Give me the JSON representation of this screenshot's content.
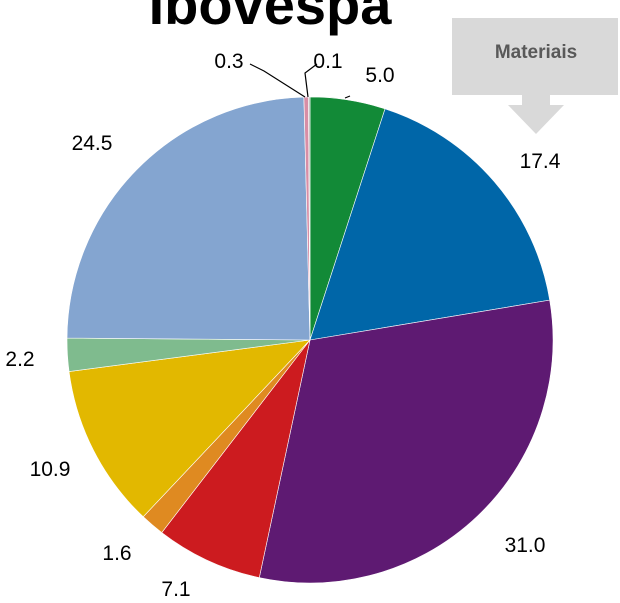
{
  "chart_data": {
    "type": "pie",
    "title": "Ibovespa",
    "start_angle_deg": 0,
    "direction": "clockwise",
    "slices": [
      {
        "value": 5.0,
        "label": "5.0",
        "color": "#128a37"
      },
      {
        "value": 17.4,
        "label": "17.4",
        "color": "#0066a8"
      },
      {
        "value": 31.0,
        "label": "31.0",
        "color": "#5e1a72"
      },
      {
        "value": 7.1,
        "label": "7.1",
        "color": "#cc1b1f"
      },
      {
        "value": 1.6,
        "label": "1.6",
        "color": "#df8a21"
      },
      {
        "value": 10.9,
        "label": "10.9",
        "color": "#e2b800"
      },
      {
        "value": 2.2,
        "label": "2.2",
        "color": "#7fbb8e"
      },
      {
        "value": 24.5,
        "label": "24.5",
        "color": "#84a5d0"
      },
      {
        "value": 0.3,
        "label": "0.3",
        "color": "#d88ea6"
      },
      {
        "value": 0.1,
        "label": "0.1",
        "color": "#b0b0b0"
      }
    ],
    "callout": {
      "text": "Materiais",
      "points_to": "17.4",
      "box_color": "#d9d9d9",
      "text_color": "#595959"
    }
  }
}
